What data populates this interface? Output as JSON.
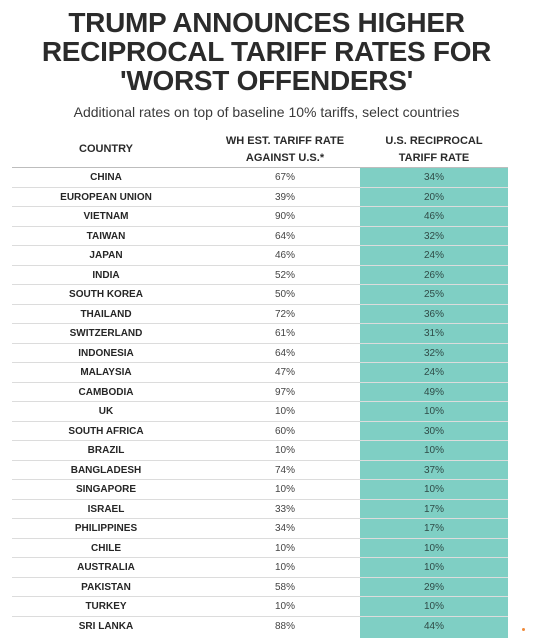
{
  "title_lines": [
    "TRUMP ANNOUNCES HIGHER",
    "RECIPROCAL TARIFF RATES FOR",
    "'WORST OFFENDERS'"
  ],
  "subtitle": "Additional rates on top of baseline 10% tariffs, select countries",
  "columns": {
    "country": "COUNTRY",
    "wh_line1": "WH EST. TARIFF RATE",
    "wh_line2": "AGAINST U.S.*",
    "us_line1": "U.S. RECIPROCAL",
    "us_line2": "TARIFF RATE"
  },
  "colors": {
    "highlight_column": "#7fcfc4"
  },
  "rows": [
    {
      "country": "CHINA",
      "wh_rate": "67%",
      "us_rate": "34%"
    },
    {
      "country": "EUROPEAN UNION",
      "wh_rate": "39%",
      "us_rate": "20%"
    },
    {
      "country": "VIETNAM",
      "wh_rate": "90%",
      "us_rate": "46%"
    },
    {
      "country": "TAIWAN",
      "wh_rate": "64%",
      "us_rate": "32%"
    },
    {
      "country": "JAPAN",
      "wh_rate": "46%",
      "us_rate": "24%"
    },
    {
      "country": "INDIA",
      "wh_rate": "52%",
      "us_rate": "26%"
    },
    {
      "country": "SOUTH KOREA",
      "wh_rate": "50%",
      "us_rate": "25%"
    },
    {
      "country": "THAILAND",
      "wh_rate": "72%",
      "us_rate": "36%"
    },
    {
      "country": "SWITZERLAND",
      "wh_rate": "61%",
      "us_rate": "31%"
    },
    {
      "country": "INDONESIA",
      "wh_rate": "64%",
      "us_rate": "32%"
    },
    {
      "country": "MALAYSIA",
      "wh_rate": "47%",
      "us_rate": "24%"
    },
    {
      "country": "CAMBODIA",
      "wh_rate": "97%",
      "us_rate": "49%"
    },
    {
      "country": "UK",
      "wh_rate": "10%",
      "us_rate": "10%"
    },
    {
      "country": "SOUTH AFRICA",
      "wh_rate": "60%",
      "us_rate": "30%"
    },
    {
      "country": "BRAZIL",
      "wh_rate": "10%",
      "us_rate": "10%"
    },
    {
      "country": "BANGLADESH",
      "wh_rate": "74%",
      "us_rate": "37%"
    },
    {
      "country": "SINGAPORE",
      "wh_rate": "10%",
      "us_rate": "10%"
    },
    {
      "country": "ISRAEL",
      "wh_rate": "33%",
      "us_rate": "17%"
    },
    {
      "country": "PHILIPPINES",
      "wh_rate": "34%",
      "us_rate": "17%"
    },
    {
      "country": "CHILE",
      "wh_rate": "10%",
      "us_rate": "10%"
    },
    {
      "country": "AUSTRALIA",
      "wh_rate": "10%",
      "us_rate": "10%"
    },
    {
      "country": "PAKISTAN",
      "wh_rate": "58%",
      "us_rate": "29%"
    },
    {
      "country": "TURKEY",
      "wh_rate": "10%",
      "us_rate": "10%"
    },
    {
      "country": "SRI LANKA",
      "wh_rate": "88%",
      "us_rate": "44%"
    }
  ]
}
